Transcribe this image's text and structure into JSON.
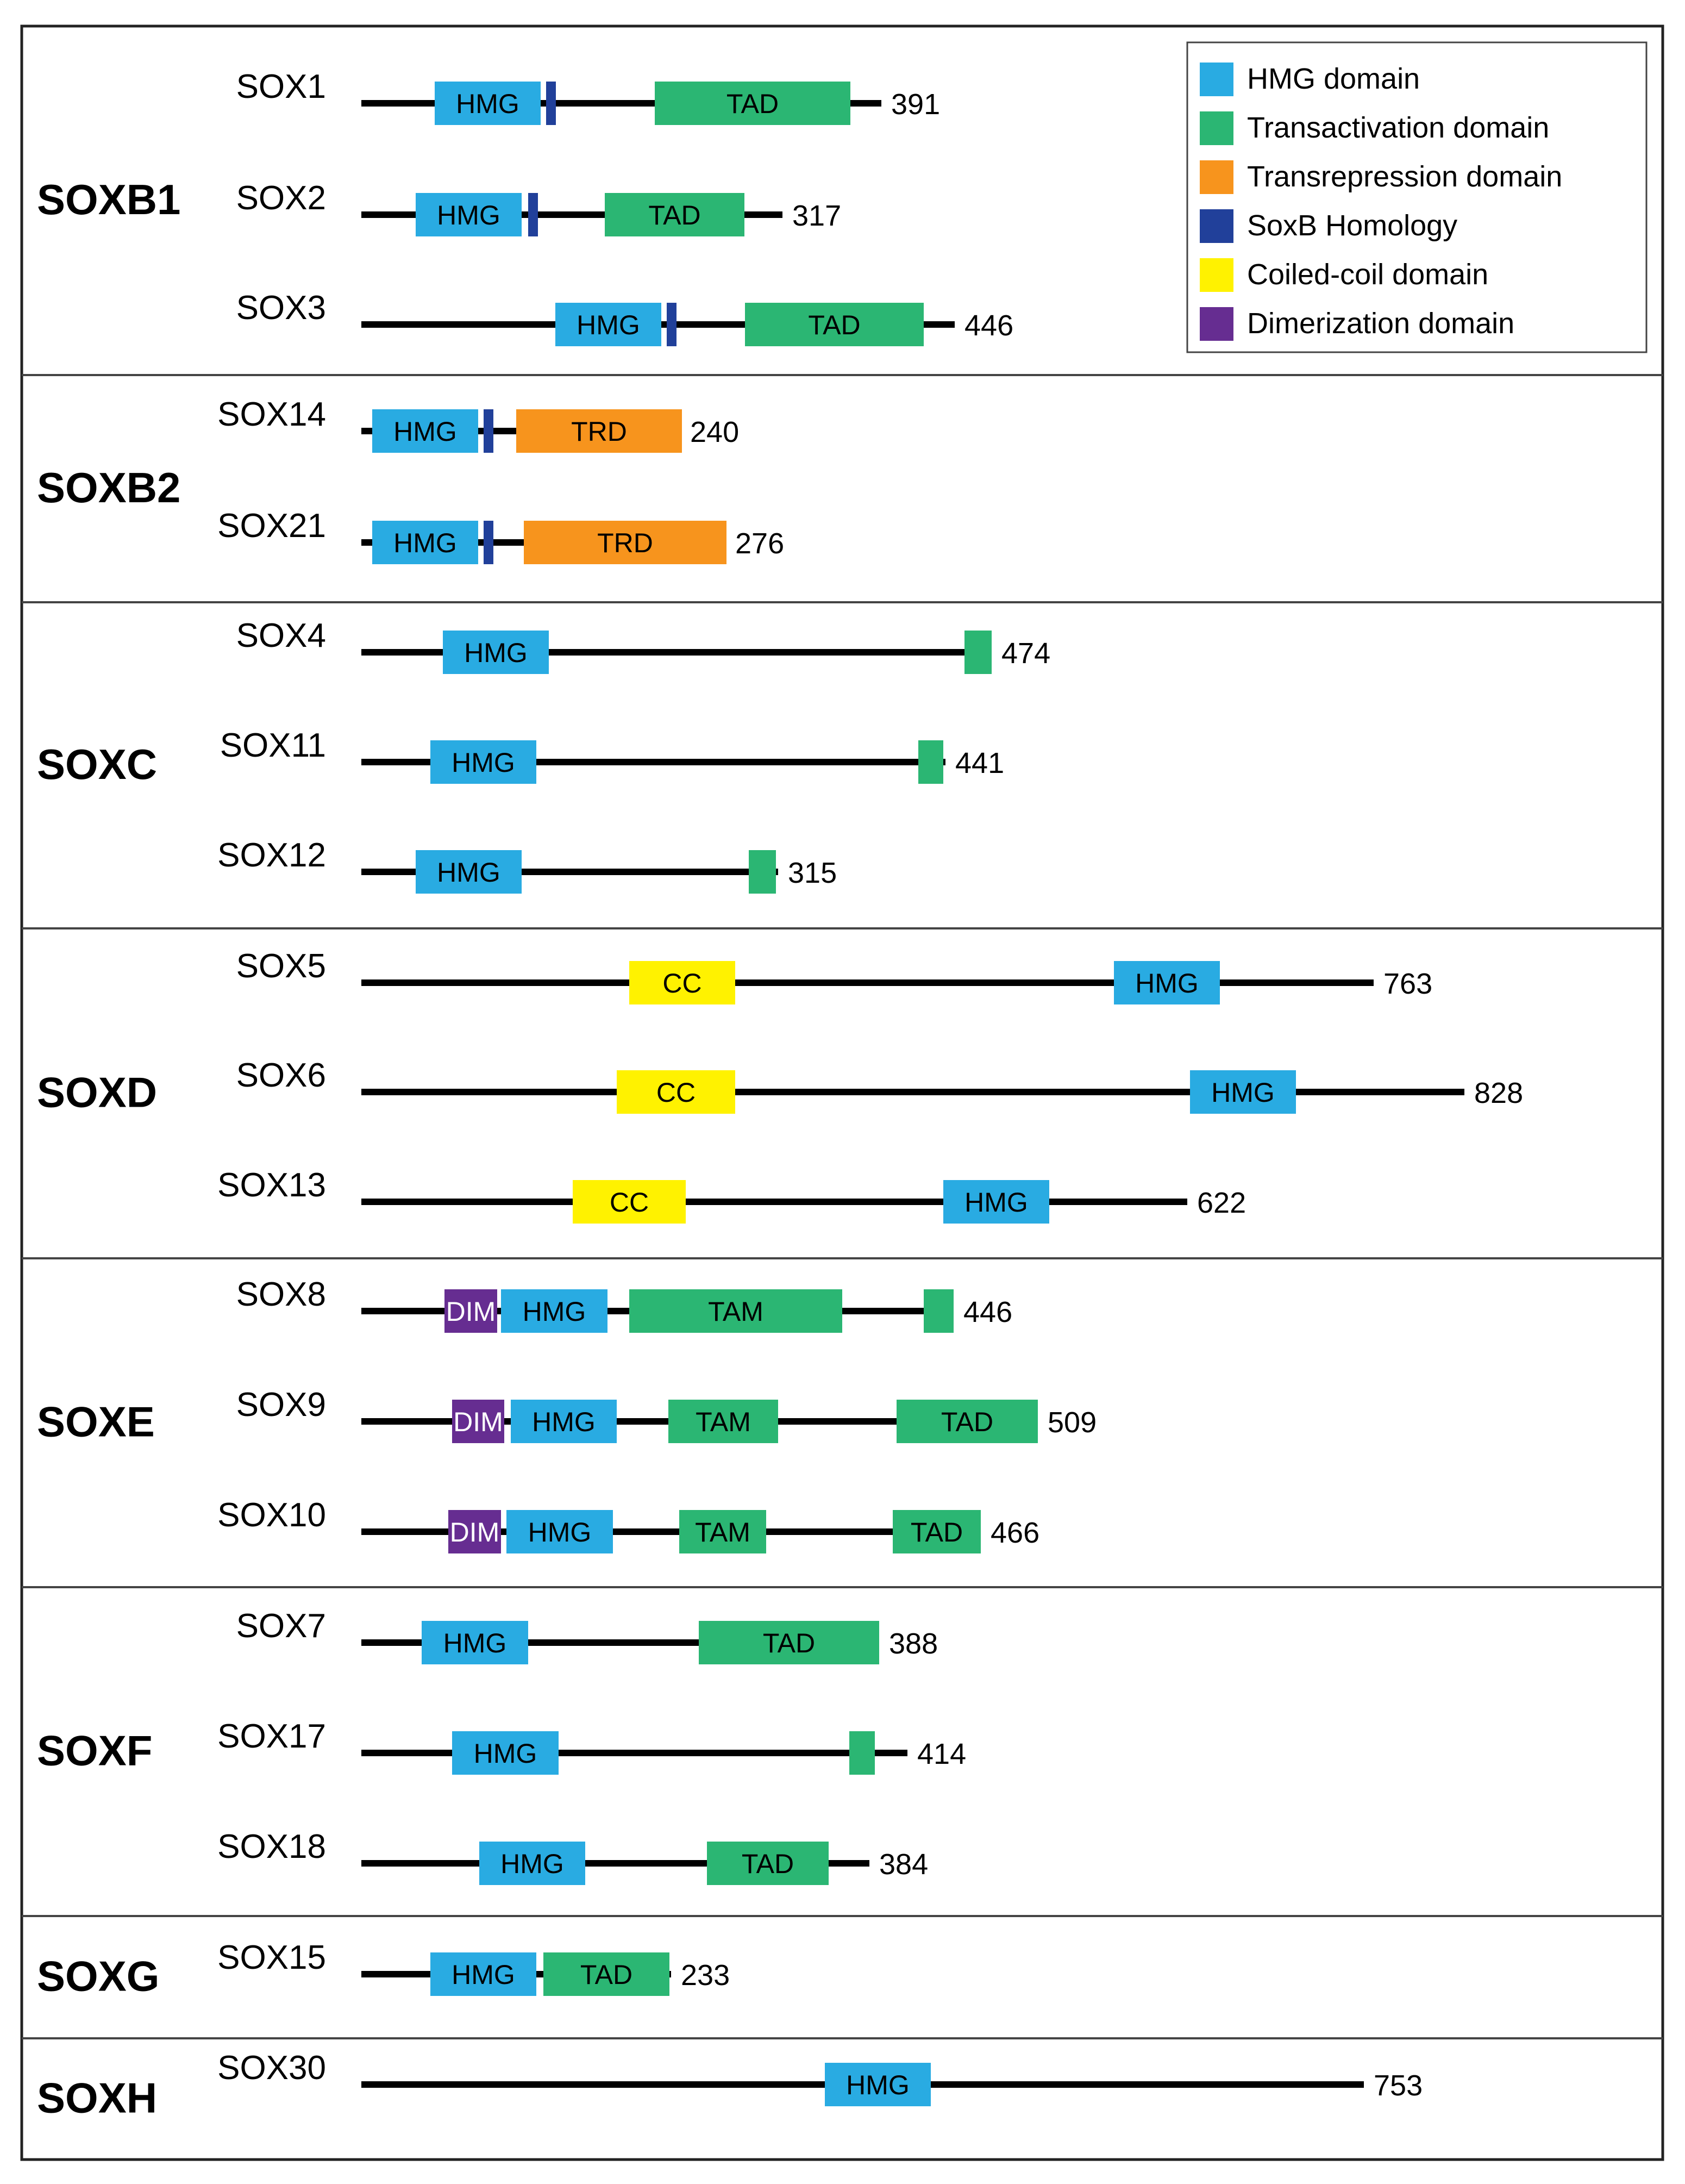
{
  "colors": {
    "hmg": "#29abe2",
    "tad": "#2bb673",
    "trd": "#f7941d",
    "soxb": "#21409a",
    "cc": "#fff200",
    "dim": "#662d91",
    "line": "#000000"
  },
  "legend": [
    {
      "key": "hmg",
      "label": "HMG domain"
    },
    {
      "key": "tad",
      "label": "Transactivation domain"
    },
    {
      "key": "trd",
      "label": "Transrepression domain"
    },
    {
      "key": "soxb",
      "label": "SoxB Homology"
    },
    {
      "key": "cc",
      "label": "Coiled-coil domain"
    },
    {
      "key": "dim",
      "label": "Dimerization domain"
    }
  ],
  "groups": [
    {
      "name": "SOXB1",
      "proteins": [
        {
          "name": "SOX1",
          "length": "391",
          "domains": [
            {
              "type": "hmg",
              "label": "HMG"
            },
            {
              "type": "soxb",
              "label": ""
            },
            {
              "type": "tad",
              "label": "TAD"
            }
          ]
        },
        {
          "name": "SOX2",
          "length": "317",
          "domains": [
            {
              "type": "hmg",
              "label": "HMG"
            },
            {
              "type": "soxb",
              "label": ""
            },
            {
              "type": "tad",
              "label": "TAD"
            }
          ]
        },
        {
          "name": "SOX3",
          "length": "446",
          "domains": [
            {
              "type": "hmg",
              "label": "HMG"
            },
            {
              "type": "soxb",
              "label": ""
            },
            {
              "type": "tad",
              "label": "TAD"
            }
          ]
        }
      ]
    },
    {
      "name": "SOXB2",
      "proteins": [
        {
          "name": "SOX14",
          "length": "240",
          "domains": [
            {
              "type": "hmg",
              "label": "HMG"
            },
            {
              "type": "soxb",
              "label": ""
            },
            {
              "type": "trd",
              "label": "TRD"
            }
          ]
        },
        {
          "name": "SOX21",
          "length": "276",
          "domains": [
            {
              "type": "hmg",
              "label": "HMG"
            },
            {
              "type": "soxb",
              "label": ""
            },
            {
              "type": "trd",
              "label": "TRD"
            }
          ]
        }
      ]
    },
    {
      "name": "SOXC",
      "proteins": [
        {
          "name": "SOX4",
          "length": "474",
          "domains": [
            {
              "type": "hmg",
              "label": "HMG"
            },
            {
              "type": "tad",
              "label": ""
            }
          ]
        },
        {
          "name": "SOX11",
          "length": "441",
          "domains": [
            {
              "type": "hmg",
              "label": "HMG"
            },
            {
              "type": "tad",
              "label": ""
            }
          ]
        },
        {
          "name": "SOX12",
          "length": "315",
          "domains": [
            {
              "type": "hmg",
              "label": "HMG"
            },
            {
              "type": "tad",
              "label": ""
            }
          ]
        }
      ]
    },
    {
      "name": "SOXD",
      "proteins": [
        {
          "name": "SOX5",
          "length": "763",
          "domains": [
            {
              "type": "cc",
              "label": "CC"
            },
            {
              "type": "hmg",
              "label": "HMG"
            }
          ]
        },
        {
          "name": "SOX6",
          "length": "828",
          "domains": [
            {
              "type": "cc",
              "label": "CC"
            },
            {
              "type": "hmg",
              "label": "HMG"
            }
          ]
        },
        {
          "name": "SOX13",
          "length": "622",
          "domains": [
            {
              "type": "cc",
              "label": "CC"
            },
            {
              "type": "hmg",
              "label": "HMG"
            }
          ]
        }
      ]
    },
    {
      "name": "SOXE",
      "proteins": [
        {
          "name": "SOX8",
          "length": "446",
          "domains": [
            {
              "type": "dim",
              "label": "DIM"
            },
            {
              "type": "hmg",
              "label": "HMG"
            },
            {
              "type": "tad",
              "label": "TAM"
            },
            {
              "type": "tad",
              "label": ""
            }
          ]
        },
        {
          "name": "SOX9",
          "length": "509",
          "domains": [
            {
              "type": "dim",
              "label": "DIM"
            },
            {
              "type": "hmg",
              "label": "HMG"
            },
            {
              "type": "tad",
              "label": "TAM"
            },
            {
              "type": "tad",
              "label": "TAD"
            }
          ]
        },
        {
          "name": "SOX10",
          "length": "466",
          "domains": [
            {
              "type": "dim",
              "label": "DIM"
            },
            {
              "type": "hmg",
              "label": "HMG"
            },
            {
              "type": "tad",
              "label": "TAM"
            },
            {
              "type": "tad",
              "label": "TAD"
            }
          ]
        }
      ]
    },
    {
      "name": "SOXF",
      "proteins": [
        {
          "name": "SOX7",
          "length": "388",
          "domains": [
            {
              "type": "hmg",
              "label": "HMG"
            },
            {
              "type": "tad",
              "label": "TAD"
            }
          ]
        },
        {
          "name": "SOX17",
          "length": "414",
          "domains": [
            {
              "type": "hmg",
              "label": "HMG"
            },
            {
              "type": "tad",
              "label": ""
            }
          ]
        },
        {
          "name": "SOX18",
          "length": "384",
          "domains": [
            {
              "type": "hmg",
              "label": "HMG"
            },
            {
              "type": "tad",
              "label": "TAD"
            }
          ]
        }
      ]
    },
    {
      "name": "SOXG",
      "proteins": [
        {
          "name": "SOX15",
          "length": "233",
          "domains": [
            {
              "type": "hmg",
              "label": "HMG"
            },
            {
              "type": "tad",
              "label": "TAD"
            }
          ]
        }
      ]
    },
    {
      "name": "SOXH",
      "proteins": [
        {
          "name": "SOX30",
          "length": "753",
          "domains": [
            {
              "type": "hmg",
              "label": "HMG"
            }
          ]
        }
      ]
    }
  ]
}
